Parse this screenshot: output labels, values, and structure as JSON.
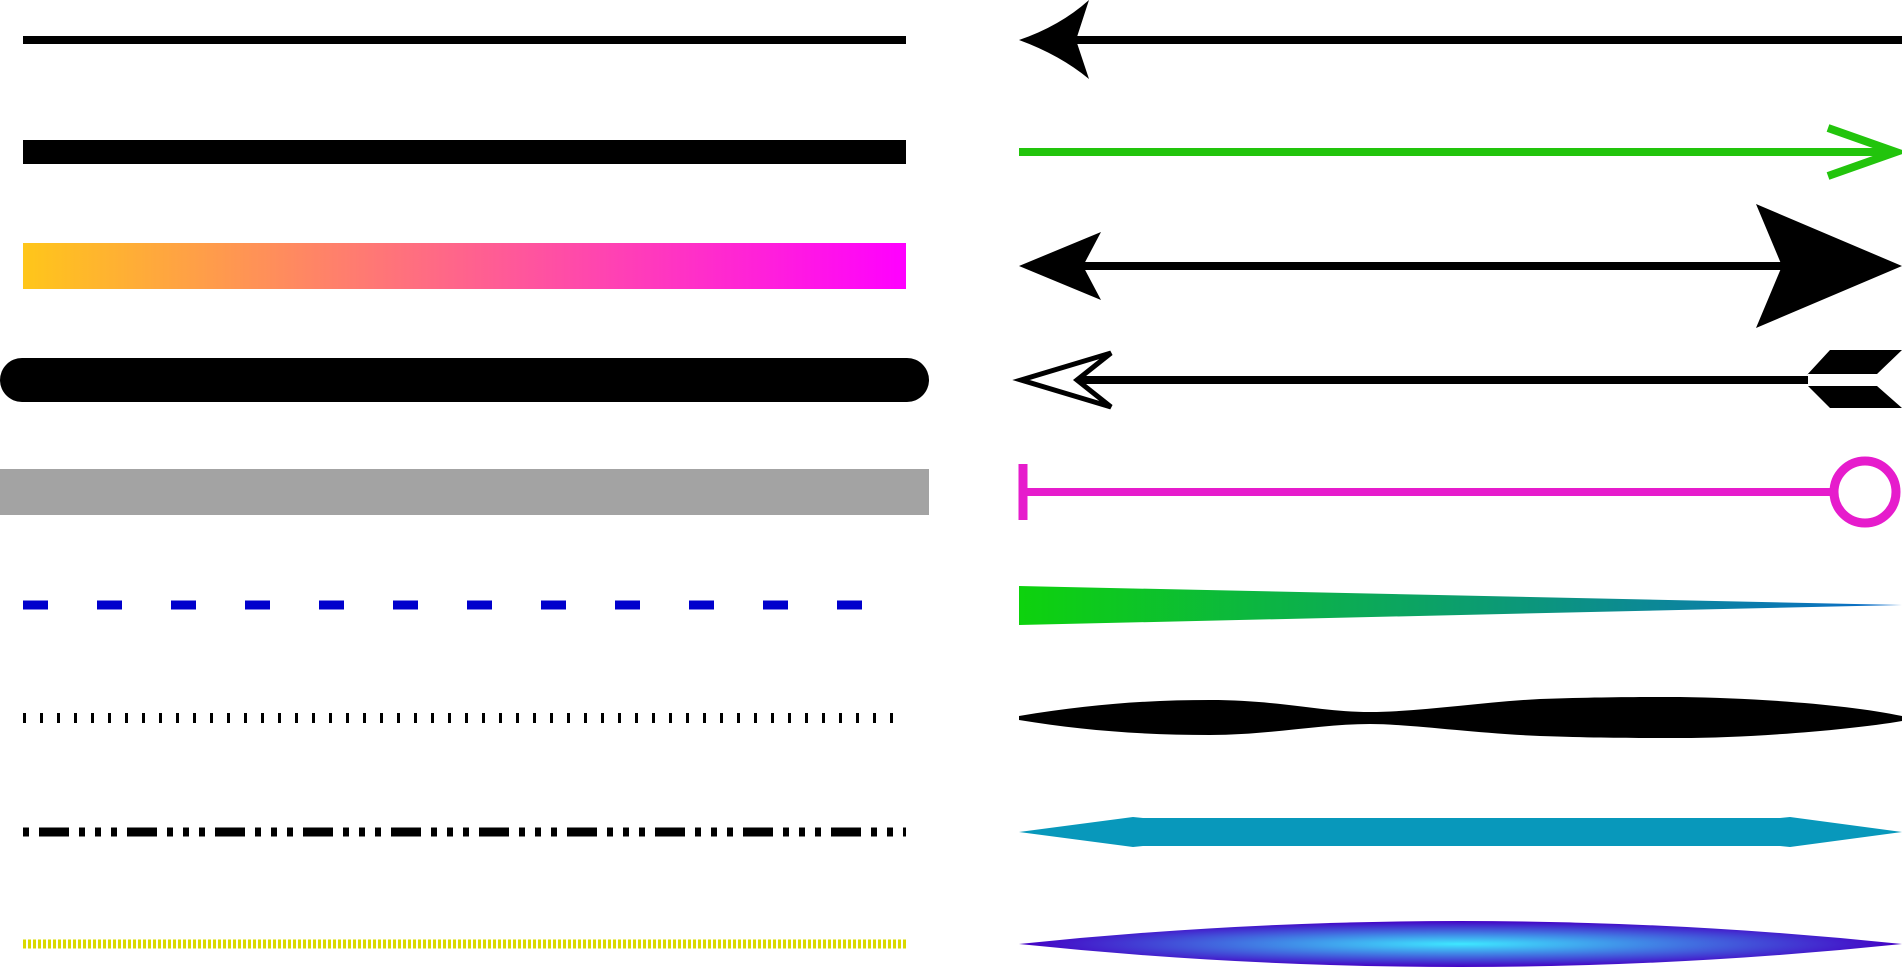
{
  "colors": {
    "black": "#000000",
    "gradient_orange_start": "#ffc61a",
    "gradient_magenta_end": "#ff00ff",
    "gray": "#a3a3a3",
    "dash_blue": "#0000cc",
    "dash_yellow": "#d9d900",
    "arrow_green": "#22c40c",
    "marker_magenta": "#e61ccc",
    "taper_green": "#0dd20d",
    "taper_blue": "#0b6bcc",
    "ribbon_teal": "#0898bb",
    "lens_purple": "#4400c4",
    "lens_cyan": "#3ee8ff"
  },
  "left_samples": [
    "thin-solid-line",
    "thick-solid-line",
    "gradient-orange-magenta-line",
    "round-cap-thick-line",
    "gray-wide-line",
    "blue-dashed-line",
    "black-dotted-line",
    "black-dash-dot-dot-line",
    "yellow-fine-dashed-line"
  ],
  "right_samples": [
    "swallowtail-arrow-left",
    "green-open-arrow-right",
    "double-headed-arrow",
    "feathered-arrow",
    "bar-to-circle-line",
    "tapered-gradient-stroke",
    "wavy-variable-width-stroke",
    "teal-pointed-ribbon",
    "radial-gradient-lens"
  ]
}
